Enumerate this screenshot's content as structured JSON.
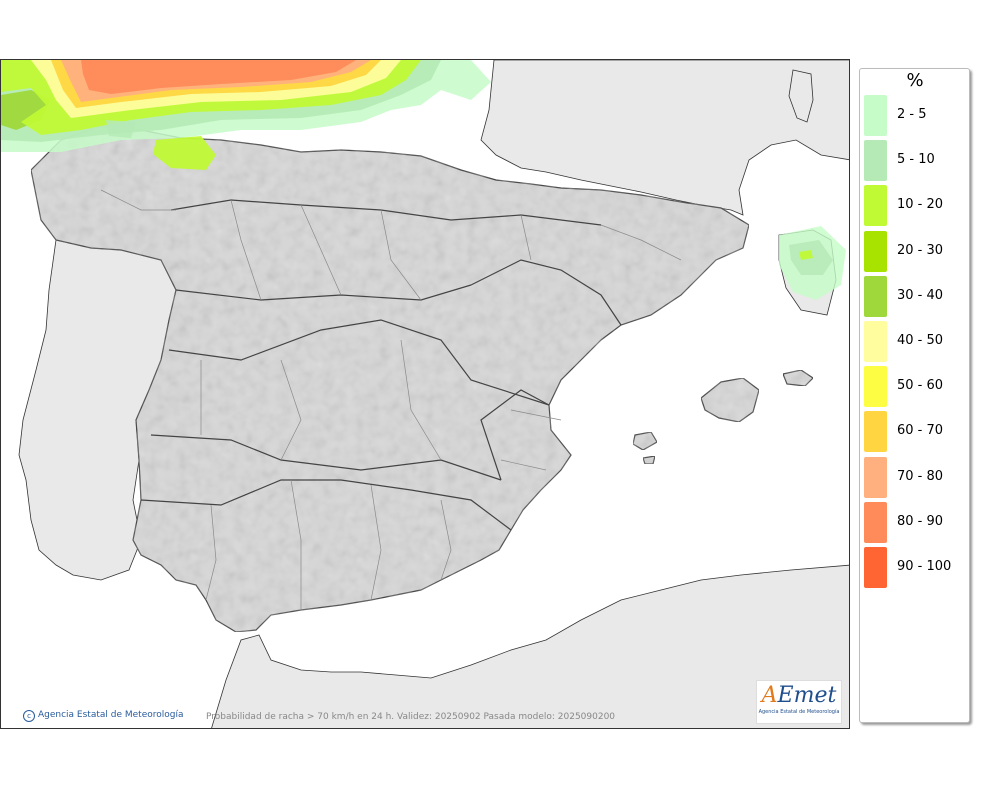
{
  "legend": {
    "unit": "%",
    "items": [
      {
        "label": "2 - 5",
        "color": "#c6fcc8"
      },
      {
        "label": "5 - 10",
        "color": "#b5eab6"
      },
      {
        "label": "10 - 20",
        "color": "#c0fa35"
      },
      {
        "label": "20 - 30",
        "color": "#a8e300"
      },
      {
        "label": "30 - 40",
        "color": "#9fd83a"
      },
      {
        "label": "40 - 50",
        "color": "#fffd9e"
      },
      {
        "label": "50 - 60",
        "color": "#fdfd43"
      },
      {
        "label": "60 - 70",
        "color": "#ffd641"
      },
      {
        "label": "70 - 80",
        "color": "#ffb07e"
      },
      {
        "label": "80 - 90",
        "color": "#ff8a5a"
      },
      {
        "label": "90 - 100",
        "color": "#ff6533"
      }
    ]
  },
  "footer": {
    "copyright": "Agencia Estatal de Meteorología",
    "caption": "Probabilidad de racha > 70 km/h en 24 h. Validez: 20250902 Pasada modelo: 2025090200"
  },
  "logo": {
    "name": "AEmet",
    "subtitle": "Agencia Estatal de Meteorología"
  },
  "colors": {
    "sea": "#ffffff",
    "foreign_land": "#e9e9e9",
    "spain_land": "#d8d8d8",
    "border": "#333333"
  }
}
